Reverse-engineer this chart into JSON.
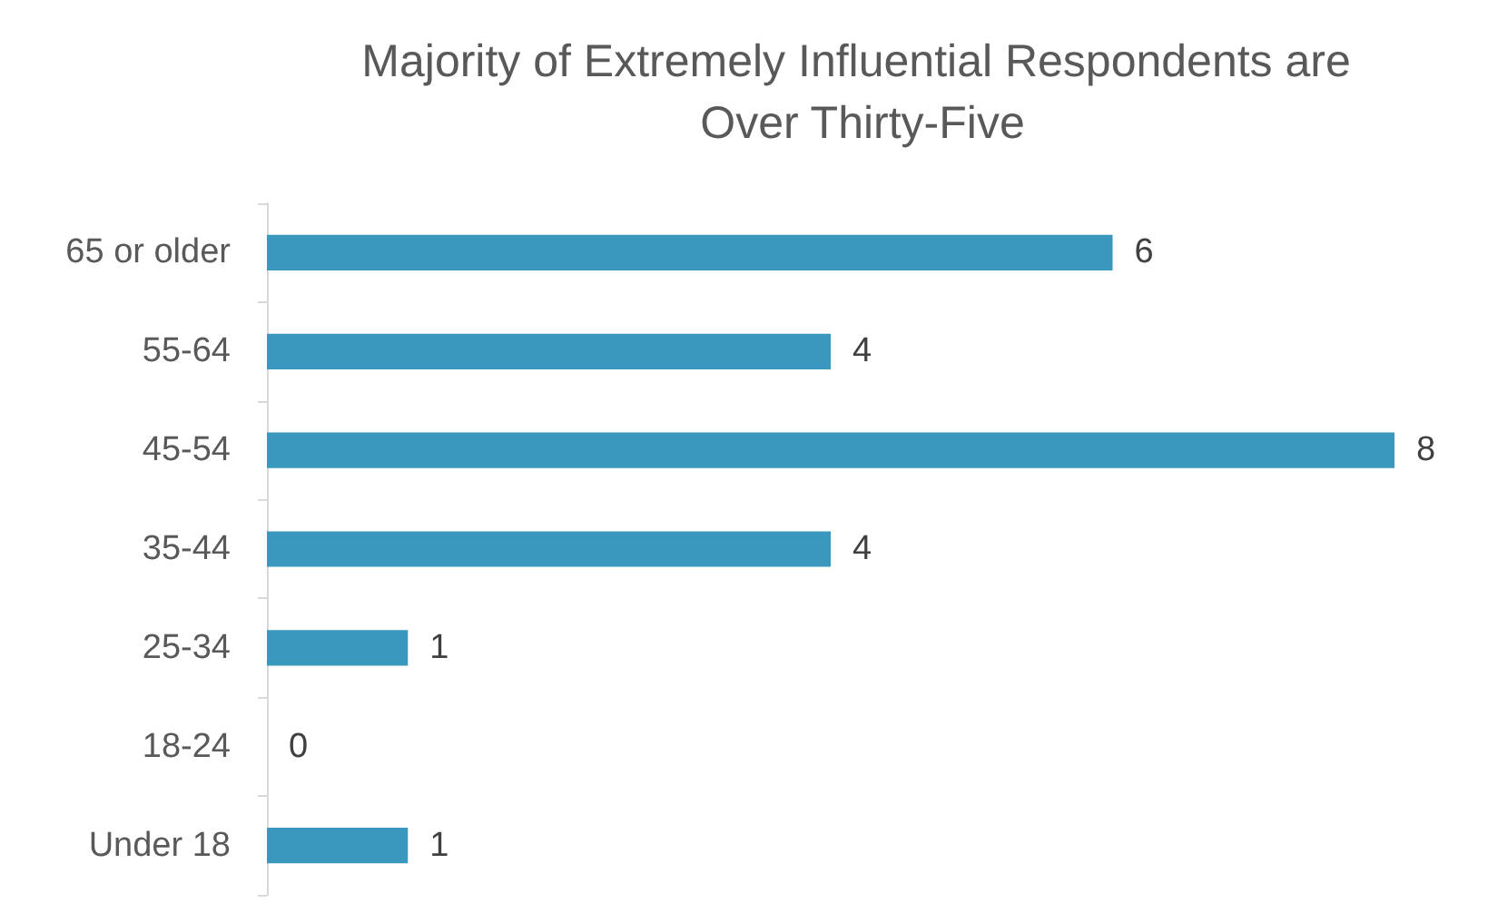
{
  "chart_data": {
    "type": "bar",
    "orientation": "horizontal",
    "title": "Majority of Extremely Influential Respondents are Over Thirty-Five",
    "categories": [
      "65 or older",
      "55-64",
      "45-54",
      "35-44",
      "25-34",
      "18-24",
      "Under 18"
    ],
    "values": [
      6,
      4,
      8,
      4,
      1,
      0,
      1
    ],
    "color": "#3a97bd",
    "data_labels": true
  }
}
